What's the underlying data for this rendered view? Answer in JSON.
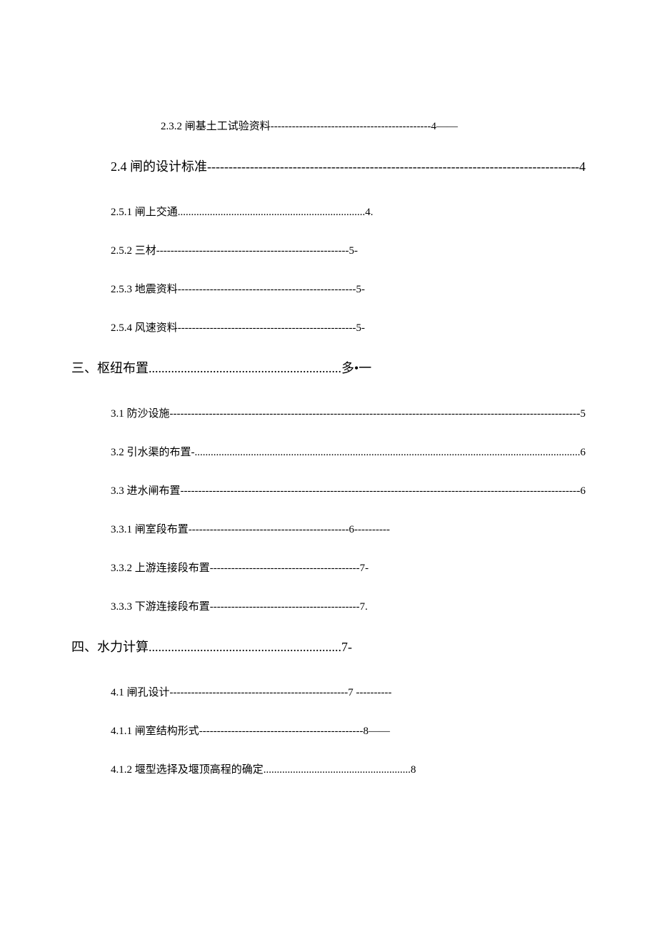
{
  "document": {
    "background_color": "#ffffff",
    "text_color": "#000000",
    "font_family": "SimSun",
    "entries": [
      {
        "id": "e232",
        "level": "level-3-indent",
        "number": "2.3.2",
        "title": "闸基土工试验资料",
        "leader_char": "-",
        "page": "4——",
        "style": "short"
      },
      {
        "id": "e24",
        "level": "level-2-wide",
        "number": "2.4",
        "title": "闸的设计标准",
        "leader_char": "-",
        "page": "-4",
        "style": "full"
      },
      {
        "id": "e251",
        "level": "level-3",
        "number": "2.5.1",
        "title": "闸上交通",
        "leader_char": ".",
        "page": "4.",
        "style": "short"
      },
      {
        "id": "e252",
        "level": "level-3",
        "number": "2.5.2",
        "title": "三材",
        "leader_char": "-",
        "page": "5-",
        "style": "short"
      },
      {
        "id": "e253",
        "level": "level-3",
        "number": "2.5.3",
        "title": "地震资料",
        "leader_char": "-",
        "page": "5-",
        "style": "short"
      },
      {
        "id": "e254",
        "level": "level-3",
        "number": "2.5.4",
        "title": "风速资料",
        "leader_char": "-",
        "page": "5-",
        "style": "short"
      },
      {
        "id": "s3",
        "level": "level-1",
        "number": "三、",
        "title": "枢纽布置",
        "leader_char": ".",
        "page": "多•一",
        "style": "heading"
      },
      {
        "id": "e31",
        "level": "level-2",
        "number": "3.1",
        "title": "防沙设施",
        "leader_char": "-",
        "page": "-5",
        "style": "full"
      },
      {
        "id": "e32",
        "level": "level-2",
        "number": "3.2",
        "title": "引水渠的布置-",
        "leader_char": ".",
        "page": ".6",
        "style": "full"
      },
      {
        "id": "e33",
        "level": "level-2",
        "number": "3.3",
        "title": "进水闸布置",
        "leader_char": "-",
        "page": "-6",
        "style": "full"
      },
      {
        "id": "e331",
        "level": "level-3",
        "number": "3.3.1",
        "title": "闸室段布置",
        "leader_char": "-",
        "page": "6----------",
        "style": "short"
      },
      {
        "id": "e332",
        "level": "level-3",
        "number": "3.3.2",
        "title": "上游连接段布置",
        "leader_char": "-",
        "page": "7-",
        "style": "short"
      },
      {
        "id": "e333",
        "level": "level-3",
        "number": "3.3.3",
        "title": "下游连接段布置",
        "leader_char": "-",
        "page": "7.",
        "style": "short"
      },
      {
        "id": "s4",
        "level": "level-1",
        "number": "四、",
        "title": "水力计算",
        "leader_char": ".",
        "page": "7-",
        "style": "heading"
      },
      {
        "id": "e41",
        "level": "level-2",
        "number": "4.1",
        "title": "闸孔设计",
        "leader_char": "-",
        "page": "7 ----------",
        "style": "short"
      },
      {
        "id": "e411",
        "level": "level-3",
        "number": "4.1.1",
        "title": "闸室结构形式",
        "leader_char": "-",
        "page": "8——",
        "style": "short"
      },
      {
        "id": "e412",
        "level": "level-3",
        "number": "4.1.2",
        "title": "堰型选择及堰顶高程的确定",
        "leader_char": ".",
        "page": "8",
        "style": "short"
      }
    ]
  }
}
